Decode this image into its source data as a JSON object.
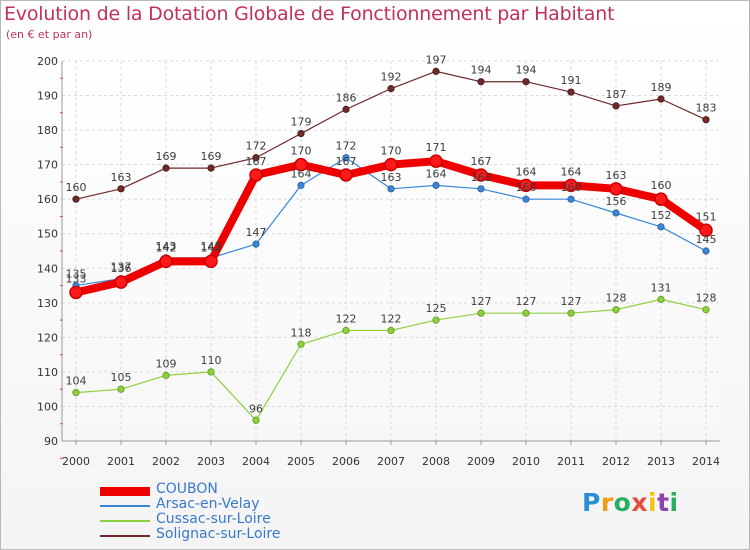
{
  "title": "Evolution de la Dotation Globale de Fonctionnement par Habitant",
  "subtitle": "(en € et par an)",
  "logo": {
    "letters": [
      "P",
      "r",
      "o",
      "x",
      "i",
      "t",
      "i"
    ],
    "colors": [
      "#2a8fd6",
      "#f39c12",
      "#27ae60",
      "#e74c3c",
      "#f1c40f",
      "#8e44ad",
      "#27ae60"
    ]
  },
  "chart_data": {
    "type": "line",
    "x": [
      "2000",
      "2001",
      "2002",
      "2003",
      "2004",
      "2005",
      "2006",
      "2007",
      "2008",
      "2009",
      "2010",
      "2011",
      "2012",
      "2013",
      "2014"
    ],
    "ylim": [
      90,
      200
    ],
    "yticks": [
      "90",
      "100",
      "110",
      "120",
      "130",
      "140",
      "150",
      "160",
      "170",
      "180",
      "190",
      "200"
    ],
    "grid": true,
    "legend_position": "bottom-left",
    "series": [
      {
        "name": "COUBON",
        "color": "#ee0000",
        "values": [
          133,
          136,
          142,
          142,
          167,
          170,
          167,
          170,
          171,
          167,
          164,
          164,
          163,
          160,
          151
        ],
        "labels": [
          "133",
          "136",
          "142",
          "142",
          "167",
          "170",
          "167",
          "170",
          "171",
          "167",
          "164",
          "164",
          "163",
          "160",
          "151"
        ]
      },
      {
        "name": "Arsac-en-Velay",
        "color": "#3a86d6",
        "values": [
          135,
          137,
          143,
          143,
          147,
          164,
          172,
          163,
          164,
          163,
          160,
          160,
          156,
          152,
          145
        ],
        "labels": [
          "135",
          "137",
          "143",
          "143",
          "147",
          "164",
          "172",
          "163",
          "164",
          "163",
          "160",
          "160",
          "156",
          "152",
          "145"
        ]
      },
      {
        "name": "Cussac-sur-Loire",
        "color": "#8ecf3e",
        "values": [
          104,
          105,
          109,
          110,
          96,
          118,
          122,
          122,
          125,
          127,
          127,
          127,
          128,
          131,
          128
        ],
        "labels": [
          "104",
          "105",
          "109",
          "110",
          "96",
          "118",
          "122",
          "122",
          "125",
          "127",
          "127",
          "127",
          "128",
          "131",
          "128"
        ]
      },
      {
        "name": "Solignac-sur-Loire",
        "color": "#6e2a2a",
        "values": [
          160,
          163,
          169,
          169,
          172,
          179,
          186,
          192,
          197,
          194,
          194,
          191,
          187,
          189,
          183
        ],
        "labels": [
          "160",
          "163",
          "169",
          "169",
          "172",
          "179",
          "186",
          "192",
          "197",
          "194",
          "194",
          "191",
          "187",
          "189",
          "183"
        ]
      }
    ]
  }
}
